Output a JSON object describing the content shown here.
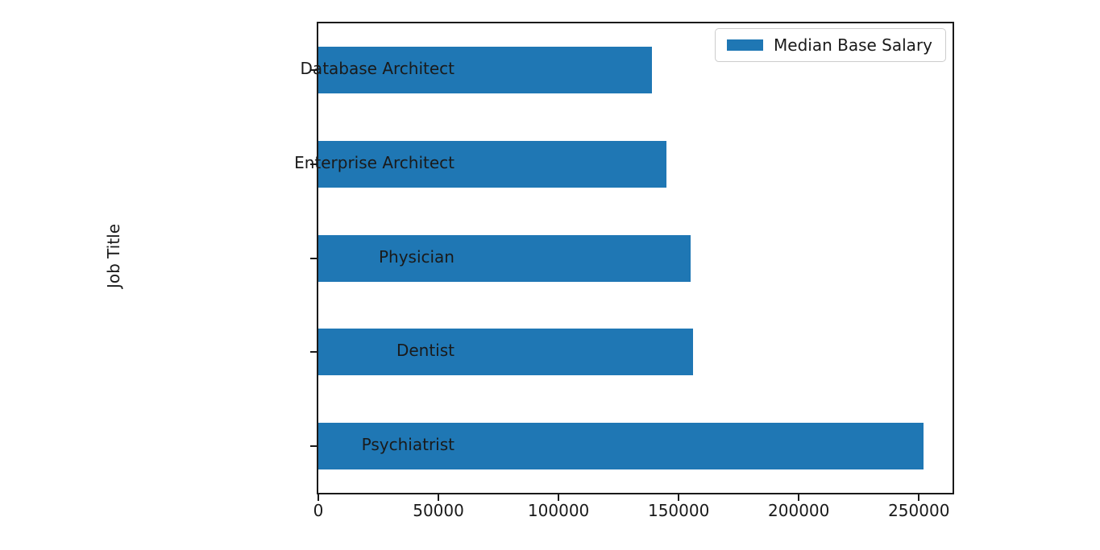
{
  "chart_data": {
    "type": "bar",
    "orientation": "horizontal",
    "title": "",
    "xlabel": "",
    "ylabel": "Job Title",
    "categories_top_to_bottom": [
      "Database Architect",
      "Enterprise Architect",
      "Physician",
      "Dentist",
      "Psychiatrist"
    ],
    "series": [
      {
        "name": "Median Base Salary",
        "values_top_to_bottom": [
          139000,
          145000,
          155000,
          156000,
          252000
        ]
      }
    ],
    "xlim": [
      0,
      264000
    ],
    "x_ticks": [
      0,
      50000,
      100000,
      150000,
      200000,
      250000
    ],
    "x_tick_labels": [
      "0",
      "50000",
      "100000",
      "150000",
      "200000",
      "250000"
    ],
    "legend": {
      "entries": [
        "Median Base Salary"
      ],
      "position": "upper right"
    },
    "grid": false,
    "bar_color": "#1f77b4",
    "axis_color": "#1a1a1a",
    "background_color": "#ffffff"
  }
}
